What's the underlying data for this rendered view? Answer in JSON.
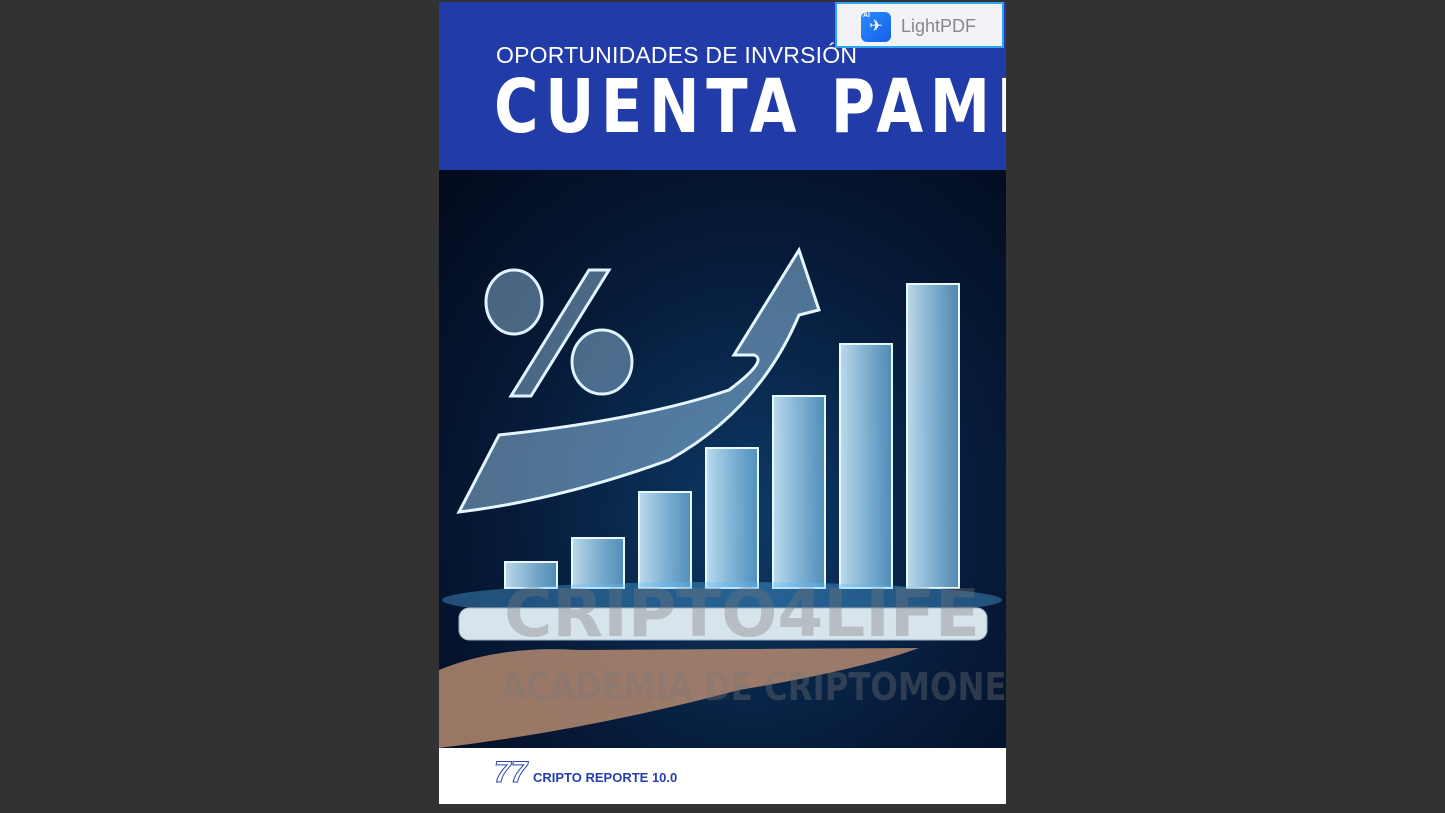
{
  "header": {
    "subtitle": "OPORTUNIDADES DE INVRSIÓN",
    "title": "CUENTA PAMM"
  },
  "watermark": {
    "brand": "CRIPTO4LIFE",
    "tagline": "ACADEMIA DE CRIPTOMONEDA"
  },
  "footer": {
    "page_number": "77",
    "report_label": "CRIPTO REPORTE 10.0"
  },
  "badge": {
    "ai_label": "AI",
    "app_name": "LightPDF"
  },
  "colors": {
    "header_blue": "#213ca8",
    "footer_text": "#2440ae",
    "badge_border": "#2ea6ef"
  }
}
